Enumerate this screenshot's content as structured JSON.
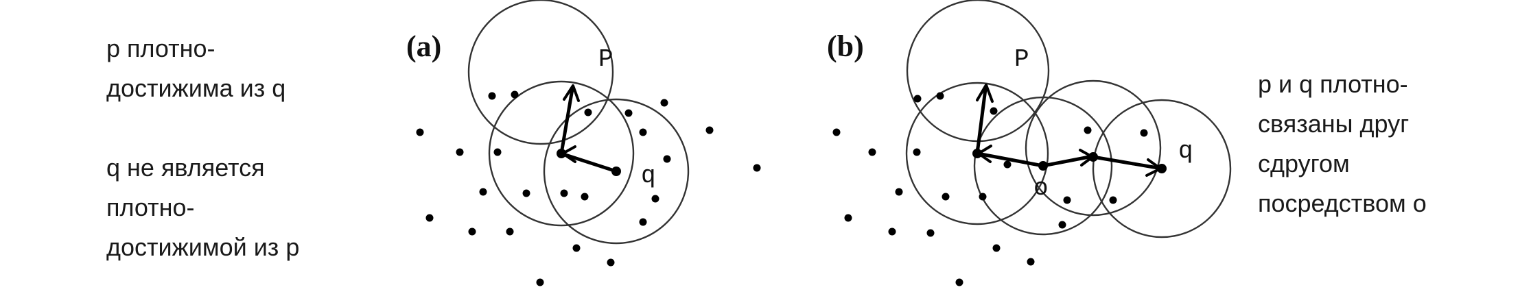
{
  "left_caption": {
    "lines": [
      "p плотно-",
      "достижима из q",
      "",
      "q не является",
      "плотно-",
      "достижимой из p"
    ]
  },
  "right_caption": {
    "lines": [
      "p и q плотно-",
      "связаны друг",
      "сдругом",
      "посредством o"
    ]
  },
  "panel_a": {
    "label": "(a)",
    "point_p": "P",
    "point_q": "q"
  },
  "panel_b": {
    "label": "(b)",
    "point_p": "P",
    "point_q": "q",
    "point_o": "o"
  }
}
